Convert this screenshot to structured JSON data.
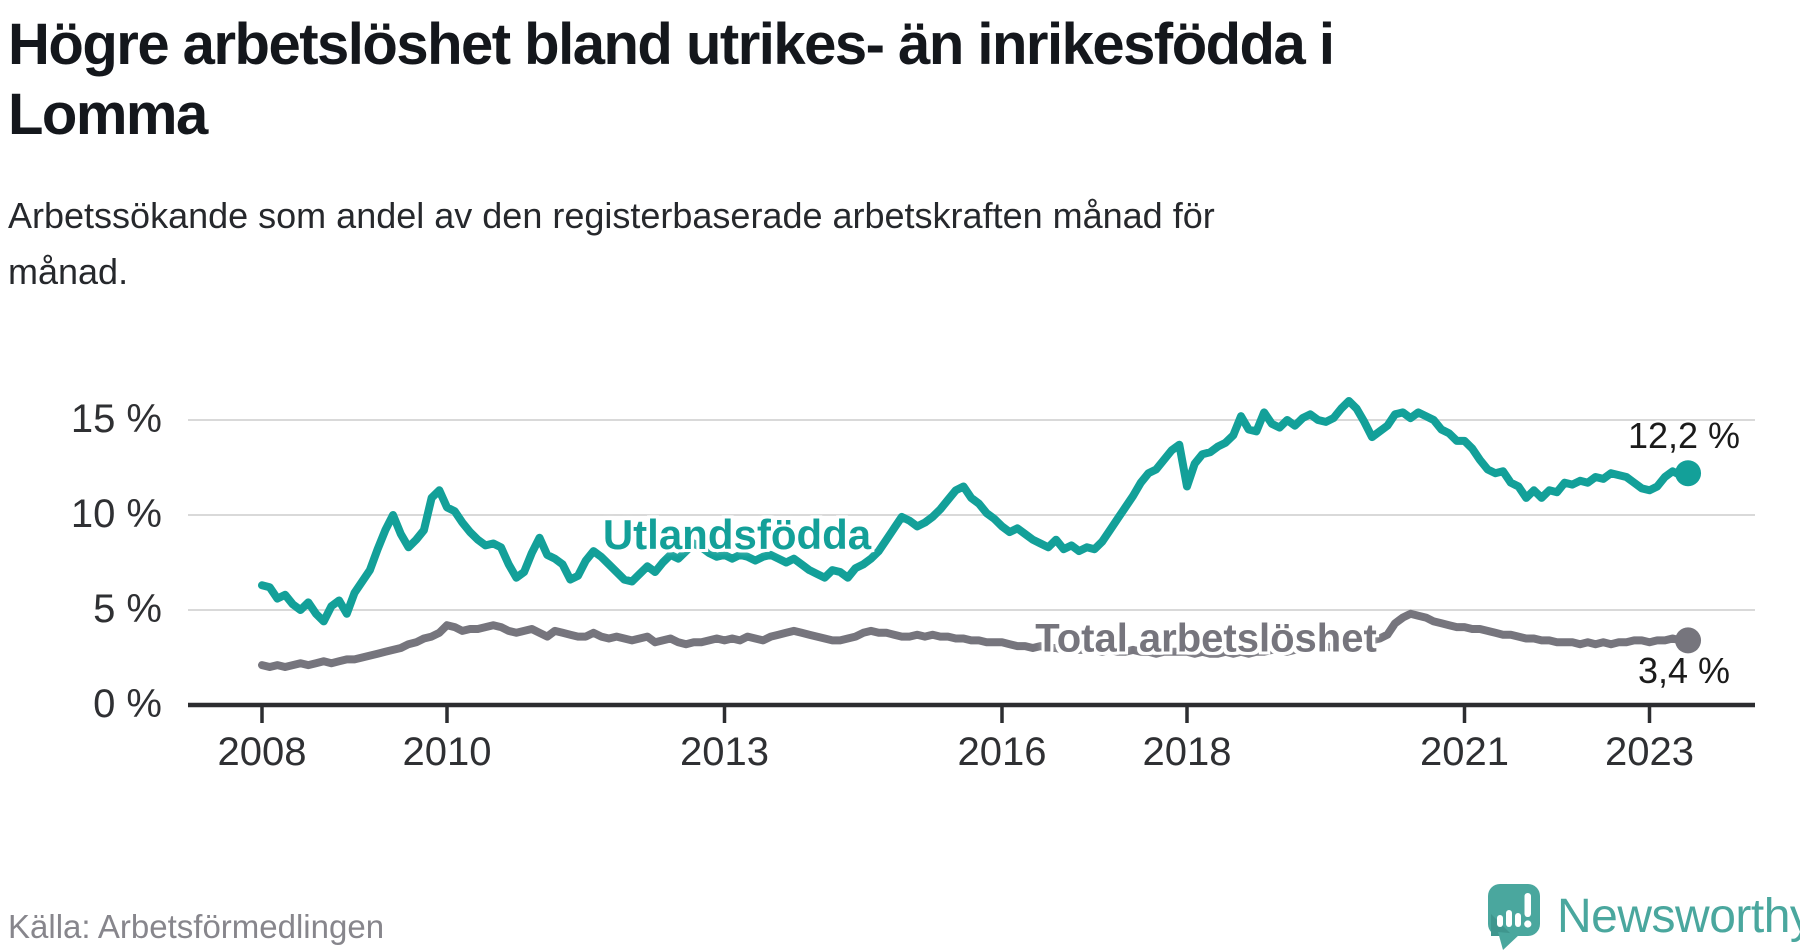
{
  "header": {
    "title_lines": [
      "Högre arbetslöshet bland utrikes- än inrikesfödda i",
      "Lomma"
    ],
    "subtitle_lines": [
      "Arbetssökande som andel av den registerbaserade arbetskraften månad för",
      "månad."
    ]
  },
  "footer": {
    "source": "Källa: Arbetsförmedlingen",
    "brand": "Newsworthy"
  },
  "colors": {
    "foreign_born_line": "#13a099",
    "total_line": "#76757d",
    "grid": "#d9d9d9",
    "axis": "#2c2d30",
    "title": "#14171c",
    "subtitle": "#26282c",
    "tick_label": "#2f3033",
    "value_label": "#1b1b1b",
    "source_text": "#87868c",
    "brand_teal": "#4aa79e",
    "brand_teal_dark": "#3f968e",
    "background": "#ffffff"
  },
  "chart_data": {
    "type": "line",
    "title": "Högre arbetslöshet bland utrikes- än inrikesfödda i Lomma",
    "subtitle": "Arbetssökande som andel av den registerbaserade arbetskraften månad för månad.",
    "unit": "%",
    "x_frequency": "monthly",
    "x_start": {
      "year": 2008,
      "month": 1
    },
    "x_end": {
      "year": 2023,
      "month": 6
    },
    "x_tick_years": [
      2008,
      2010,
      2013,
      2016,
      2018,
      2021,
      2023
    ],
    "x_tick_labels": [
      "2008",
      "2010",
      "2013",
      "2016",
      "2018",
      "2021",
      "2023"
    ],
    "y_ticks": [
      0,
      5,
      10,
      15
    ],
    "y_tick_labels": [
      "0 %",
      "5 %",
      "10 %",
      "15 %"
    ],
    "ylim": [
      0,
      17.5
    ],
    "grid": "horizontal",
    "legend": "inline-labels",
    "series": [
      {
        "name": "Utlandsfödda",
        "color": "#13a099",
        "end_label": "12,2 %",
        "end_value": 12.2,
        "values": [
          6.3,
          6.2,
          5.6,
          5.8,
          5.3,
          5.0,
          5.4,
          4.8,
          4.4,
          5.2,
          5.5,
          4.8,
          5.9,
          6.5,
          7.1,
          8.2,
          9.2,
          10.0,
          9.0,
          8.3,
          8.7,
          9.2,
          10.9,
          11.3,
          10.4,
          10.2,
          9.6,
          9.1,
          8.7,
          8.4,
          8.5,
          8.3,
          7.4,
          6.7,
          7.0,
          8.0,
          8.8,
          7.9,
          7.7,
          7.4,
          6.6,
          6.8,
          7.6,
          8.1,
          7.8,
          7.4,
          7.0,
          6.6,
          6.5,
          6.9,
          7.3,
          7.0,
          7.5,
          7.9,
          7.7,
          8.1,
          8.5,
          8.3,
          8.0,
          7.8,
          7.9,
          7.7,
          7.9,
          7.8,
          7.6,
          7.8,
          7.9,
          7.7,
          7.5,
          7.7,
          7.4,
          7.1,
          6.9,
          6.7,
          7.1,
          7.0,
          6.7,
          7.2,
          7.4,
          7.7,
          8.1,
          8.7,
          9.3,
          9.9,
          9.7,
          9.4,
          9.6,
          9.9,
          10.3,
          10.8,
          11.3,
          11.5,
          10.9,
          10.6,
          10.1,
          9.8,
          9.4,
          9.1,
          9.3,
          9.0,
          8.7,
          8.5,
          8.3,
          8.7,
          8.2,
          8.4,
          8.1,
          8.3,
          8.2,
          8.6,
          9.2,
          9.8,
          10.4,
          11.0,
          11.7,
          12.2,
          12.4,
          12.9,
          13.4,
          13.7,
          11.5,
          12.7,
          13.2,
          13.3,
          13.6,
          13.8,
          14.2,
          15.2,
          14.5,
          14.4,
          15.4,
          14.8,
          14.6,
          15.0,
          14.7,
          15.1,
          15.3,
          15.0,
          14.9,
          15.1,
          15.6,
          16.0,
          15.6,
          14.9,
          14.1,
          14.4,
          14.7,
          15.3,
          15.4,
          15.1,
          15.4,
          15.2,
          15.0,
          14.5,
          14.3,
          13.9,
          13.9,
          13.5,
          12.9,
          12.4,
          12.2,
          12.3,
          11.7,
          11.5,
          10.9,
          11.3,
          10.9,
          11.3,
          11.2,
          11.7,
          11.6,
          11.8,
          11.7,
          12.0,
          11.9,
          12.2,
          12.1,
          12.0,
          11.7,
          11.4,
          11.3,
          11.5,
          12.0,
          12.3,
          12.1,
          12.2
        ]
      },
      {
        "name": "Total arbetslöshet",
        "color": "#76757d",
        "end_label": "3,4 %",
        "end_value": 3.4,
        "values": [
          2.1,
          2.0,
          2.1,
          2.0,
          2.1,
          2.2,
          2.1,
          2.2,
          2.3,
          2.2,
          2.3,
          2.4,
          2.4,
          2.5,
          2.6,
          2.7,
          2.8,
          2.9,
          3.0,
          3.2,
          3.3,
          3.5,
          3.6,
          3.8,
          4.2,
          4.1,
          3.9,
          4.0,
          4.0,
          4.1,
          4.2,
          4.1,
          3.9,
          3.8,
          3.9,
          4.0,
          3.8,
          3.6,
          3.9,
          3.8,
          3.7,
          3.6,
          3.6,
          3.8,
          3.6,
          3.5,
          3.6,
          3.5,
          3.4,
          3.5,
          3.6,
          3.3,
          3.4,
          3.5,
          3.3,
          3.2,
          3.3,
          3.3,
          3.4,
          3.5,
          3.4,
          3.5,
          3.4,
          3.6,
          3.5,
          3.4,
          3.6,
          3.7,
          3.8,
          3.9,
          3.8,
          3.7,
          3.6,
          3.5,
          3.4,
          3.4,
          3.5,
          3.6,
          3.8,
          3.9,
          3.8,
          3.8,
          3.7,
          3.6,
          3.6,
          3.7,
          3.6,
          3.7,
          3.6,
          3.6,
          3.5,
          3.5,
          3.4,
          3.4,
          3.3,
          3.3,
          3.3,
          3.2,
          3.1,
          3.1,
          3.0,
          3.1,
          3.0,
          3.0,
          2.9,
          3.0,
          2.9,
          2.9,
          2.9,
          2.8,
          2.9,
          2.8,
          2.8,
          2.9,
          2.8,
          2.8,
          2.7,
          2.8,
          2.8,
          2.8,
          2.8,
          2.7,
          2.8,
          2.7,
          2.7,
          2.8,
          2.7,
          2.8,
          2.7,
          2.8,
          2.8,
          2.9,
          2.9,
          2.8,
          2.9,
          2.9,
          3.0,
          3.0,
          3.1,
          3.0,
          3.1,
          3.2,
          3.2,
          3.3,
          3.4,
          3.5,
          3.7,
          4.3,
          4.6,
          4.8,
          4.7,
          4.6,
          4.4,
          4.3,
          4.2,
          4.1,
          4.1,
          4.0,
          4.0,
          3.9,
          3.8,
          3.7,
          3.7,
          3.6,
          3.5,
          3.5,
          3.4,
          3.4,
          3.3,
          3.3,
          3.3,
          3.2,
          3.3,
          3.2,
          3.3,
          3.2,
          3.3,
          3.3,
          3.4,
          3.4,
          3.3,
          3.4,
          3.4,
          3.5,
          3.4,
          3.4
        ]
      }
    ]
  }
}
